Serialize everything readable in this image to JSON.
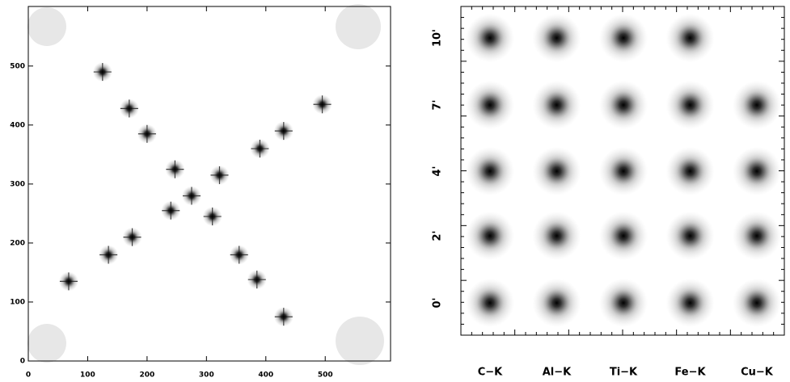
{
  "chart_data": {
    "type": "scatter",
    "x": [
      125,
      170,
      200,
      247,
      322,
      390,
      430,
      495,
      240,
      275,
      310,
      175,
      135,
      355,
      385,
      68,
      430
    ],
    "y": [
      490,
      428,
      385,
      325,
      315,
      360,
      390,
      435,
      255,
      280,
      245,
      210,
      180,
      180,
      138,
      135,
      75
    ],
    "color": "#111111",
    "xlim": [
      0,
      610
    ],
    "ylim": [
      0,
      601
    ],
    "xticks": [
      0,
      100,
      200,
      300,
      400,
      500
    ],
    "yticks": [
      0,
      100,
      200,
      300,
      400,
      500
    ]
  },
  "psf_grid": {
    "columns": [
      "C−K",
      "Al−K",
      "Ti−K",
      "Fe−K",
      "Cu−K"
    ],
    "rows": [
      "0'",
      "2'",
      "4'",
      "7'",
      "10'"
    ]
  }
}
